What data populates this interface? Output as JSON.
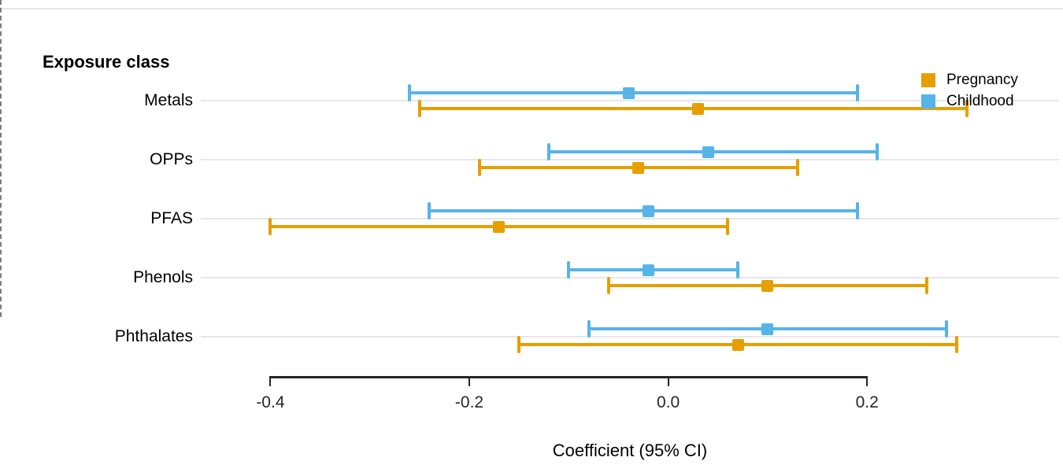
{
  "header": {
    "title": "Exposure class"
  },
  "legend": {
    "items": [
      {
        "label": "Pregnancy",
        "color": "#E69F00"
      },
      {
        "label": "Childhood",
        "color": "#56B4E9"
      }
    ]
  },
  "chart_data": {
    "type": "forest",
    "title": "",
    "xlabel": "Coefficient (95% CI)",
    "ylabel": "Exposure class",
    "xlim": [
      -0.47,
      0.393
    ],
    "x_ticks": [
      -0.4,
      -0.2,
      0.0,
      0.2
    ],
    "x_tick_labels": [
      "-0.4",
      "-0.2",
      "0.0",
      "0.2"
    ],
    "zero_reference_line": 0.0,
    "grid": "horizontal-category-lines",
    "legend_position": "top-right",
    "categories": [
      "Metals",
      "OPPs",
      "PFAS",
      "Phenols",
      "Phthalates"
    ],
    "series": [
      {
        "name": "Pregnancy",
        "color": "#E69F00",
        "estimates": [
          0.03,
          -0.03,
          -0.17,
          0.1,
          0.07
        ],
        "ci_low": [
          -0.25,
          -0.19,
          -0.4,
          -0.06,
          -0.15
        ],
        "ci_high": [
          0.3,
          0.13,
          0.06,
          0.26,
          0.29
        ]
      },
      {
        "name": "Childhood",
        "color": "#56B4E9",
        "estimates": [
          -0.04,
          0.04,
          -0.02,
          -0.02,
          0.1
        ],
        "ci_low": [
          -0.26,
          -0.12,
          -0.24,
          -0.1,
          -0.08
        ],
        "ci_high": [
          0.19,
          0.21,
          0.19,
          0.07,
          0.28
        ]
      }
    ]
  }
}
